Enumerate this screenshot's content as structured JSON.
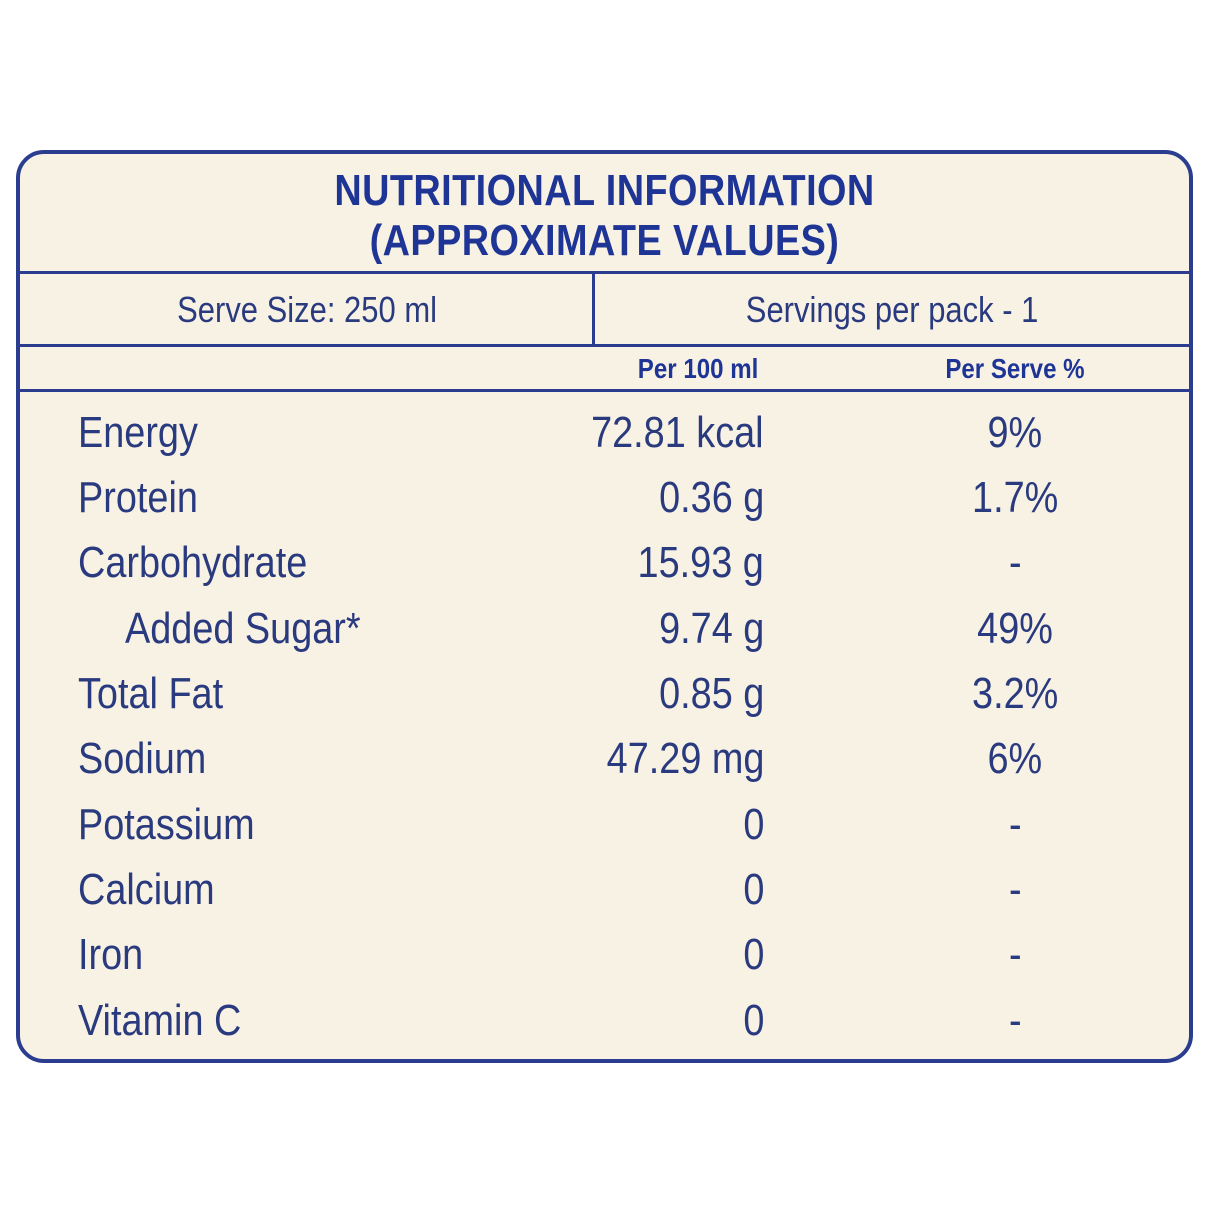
{
  "title": {
    "line1": "NUTRITIONAL INFORMATION",
    "line2": "(APPROXIMATE VALUES)"
  },
  "serve": {
    "size": "Serve Size: 250 ml",
    "servings": "Servings per pack - 1"
  },
  "columns": {
    "per100": "Per 100 ml",
    "perServe": "Per Serve %"
  },
  "rows": [
    {
      "name": "Energy",
      "value": "72.81 kcal",
      "pct": "9%"
    },
    {
      "name": "Protein",
      "value": "0.36 g",
      "pct": "1.7%"
    },
    {
      "name": "Carbohydrate",
      "value": "15.93 g",
      "pct": "-"
    },
    {
      "name": "Added Sugar*",
      "value": "9.74 g",
      "pct": "49%"
    },
    {
      "name": "Total Fat",
      "value": "0.85 g",
      "pct": "3.2%"
    },
    {
      "name": "Sodium",
      "value": "47.29 mg",
      "pct": "6%"
    },
    {
      "name": "Potassium",
      "value": "0",
      "pct": "-"
    },
    {
      "name": "Calcium",
      "value": "0",
      "pct": "-"
    },
    {
      "name": "Iron",
      "value": "0",
      "pct": "-"
    },
    {
      "name": "Vitamin C",
      "value": "0",
      "pct": "-"
    }
  ],
  "colors": {
    "border": "#2a3d8f",
    "heading": "#1f3596",
    "text": "#2a3a7e",
    "background": "#f8f2e5"
  }
}
